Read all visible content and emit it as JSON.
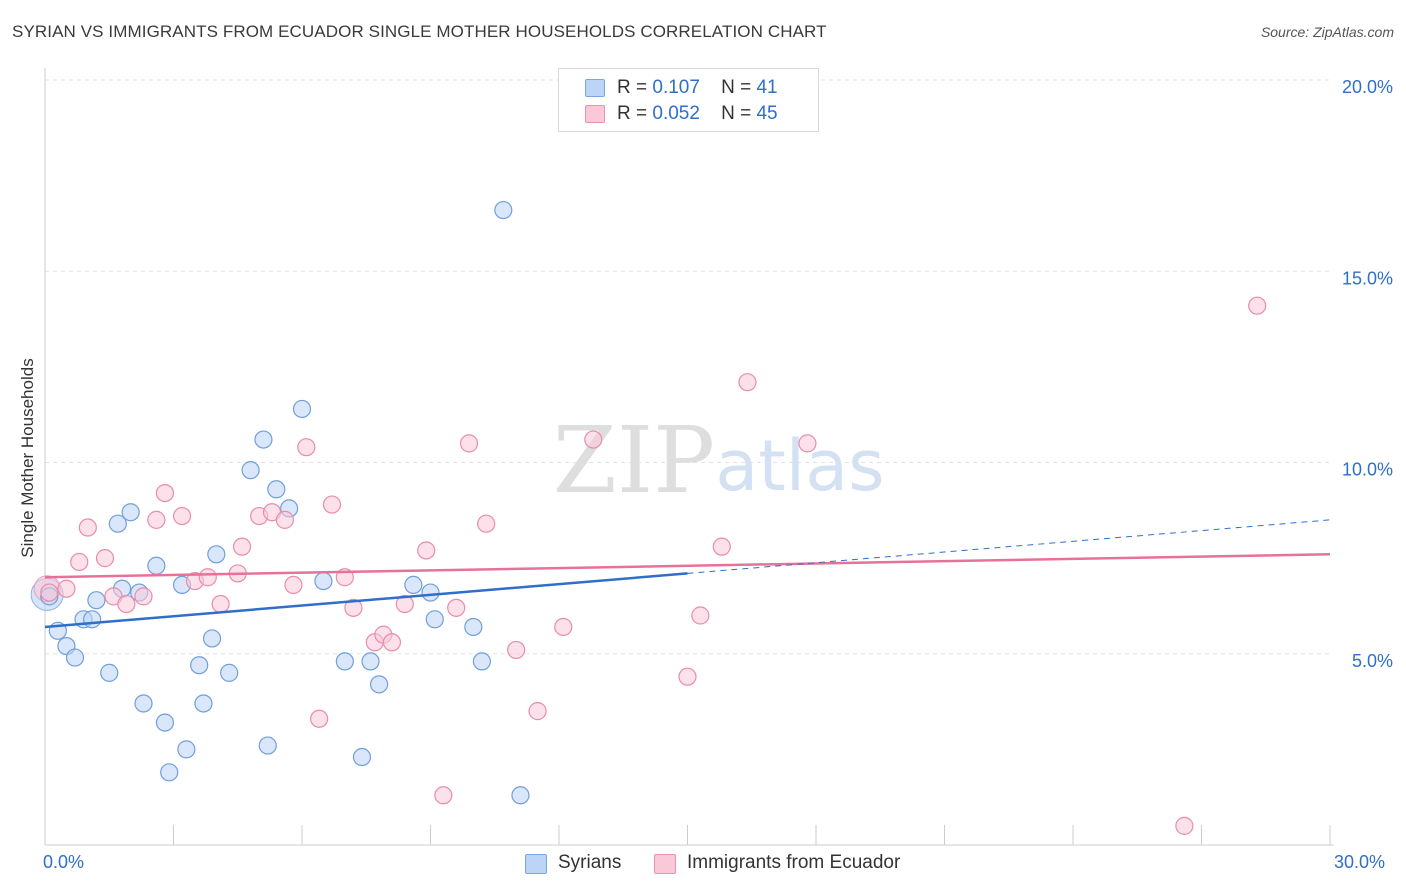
{
  "title": "SYRIAN VS IMMIGRANTS FROM ECUADOR SINGLE MOTHER HOUSEHOLDS CORRELATION CHART",
  "source": "Source: ZipAtlas.com",
  "watermark": {
    "zip": "ZIP",
    "atlas": "atlas"
  },
  "legend": {
    "rows": [
      {
        "r_label": "R =",
        "r_value": "0.107",
        "n_label": "N =",
        "n_value": "41"
      },
      {
        "r_label": "R =",
        "r_value": "0.052",
        "n_label": "N =",
        "n_value": "45"
      }
    ]
  },
  "chart_data": {
    "type": "scatter",
    "title": "SYRIAN VS IMMIGRANTS FROM ECUADOR SINGLE MOTHER HOUSEHOLDS CORRELATION CHART",
    "xlabel": "",
    "ylabel": "Single Mother Households",
    "xlim": [
      0,
      30
    ],
    "ylim": [
      0,
      20
    ],
    "x_tick_labels": [
      "0.0%",
      "30.0%"
    ],
    "y_ticks": [
      5,
      10,
      15,
      20
    ],
    "y_tick_labels": [
      "5.0%",
      "10.0%",
      "15.0%",
      "20.0%"
    ],
    "grid": true,
    "colors": {
      "Syrians": "#2f6fca",
      "Immigrants from Ecuador": "#e8719a",
      "axis_text": "#2f6fca"
    },
    "series": [
      {
        "name": "Syrians",
        "r": 0.107,
        "n": 41,
        "trend": {
          "x": [
            0,
            15
          ],
          "y": [
            5.7,
            7.1
          ]
        },
        "trend_extension": {
          "x": [
            15,
            30
          ],
          "y": [
            7.1,
            8.5
          ]
        },
        "points": [
          [
            0.1,
            6.5
          ],
          [
            0.3,
            5.6
          ],
          [
            0.5,
            5.2
          ],
          [
            0.7,
            4.9
          ],
          [
            0.9,
            5.9
          ],
          [
            1.1,
            5.9
          ],
          [
            1.2,
            6.4
          ],
          [
            1.5,
            4.5
          ],
          [
            1.7,
            8.4
          ],
          [
            1.8,
            6.7
          ],
          [
            2.0,
            8.7
          ],
          [
            2.2,
            6.6
          ],
          [
            2.3,
            3.7
          ],
          [
            2.6,
            7.3
          ],
          [
            2.8,
            3.2
          ],
          [
            2.9,
            1.9
          ],
          [
            3.2,
            6.8
          ],
          [
            3.3,
            2.5
          ],
          [
            3.6,
            4.7
          ],
          [
            3.7,
            3.7
          ],
          [
            3.9,
            5.4
          ],
          [
            4.0,
            7.6
          ],
          [
            4.3,
            4.5
          ],
          [
            4.8,
            9.8
          ],
          [
            5.1,
            10.6
          ],
          [
            5.2,
            2.6
          ],
          [
            5.4,
            9.3
          ],
          [
            5.7,
            8.8
          ],
          [
            6.0,
            11.4
          ],
          [
            6.5,
            6.9
          ],
          [
            7.0,
            4.8
          ],
          [
            7.4,
            2.3
          ],
          [
            7.6,
            4.8
          ],
          [
            7.8,
            4.2
          ],
          [
            8.6,
            6.8
          ],
          [
            9.0,
            6.6
          ],
          [
            9.1,
            5.9
          ],
          [
            10.0,
            5.7
          ],
          [
            10.2,
            4.8
          ],
          [
            10.7,
            16.6
          ],
          [
            11.1,
            1.3
          ]
        ]
      },
      {
        "name": "Immigrants from Ecuador",
        "r": 0.052,
        "n": 45,
        "trend": {
          "x": [
            0,
            30
          ],
          "y": [
            7.0,
            7.6
          ]
        },
        "points": [
          [
            0.1,
            6.6
          ],
          [
            0.5,
            6.7
          ],
          [
            0.8,
            7.4
          ],
          [
            1.0,
            8.3
          ],
          [
            1.4,
            7.5
          ],
          [
            1.6,
            6.5
          ],
          [
            1.9,
            6.3
          ],
          [
            2.3,
            6.5
          ],
          [
            2.6,
            8.5
          ],
          [
            2.8,
            9.2
          ],
          [
            3.2,
            8.6
          ],
          [
            3.5,
            6.9
          ],
          [
            3.8,
            7.0
          ],
          [
            4.1,
            6.3
          ],
          [
            4.5,
            7.1
          ],
          [
            4.6,
            7.8
          ],
          [
            5.0,
            8.6
          ],
          [
            5.3,
            8.7
          ],
          [
            5.6,
            8.5
          ],
          [
            5.8,
            6.8
          ],
          [
            6.1,
            10.4
          ],
          [
            6.4,
            3.3
          ],
          [
            6.7,
            8.9
          ],
          [
            7.0,
            7.0
          ],
          [
            7.2,
            6.2
          ],
          [
            7.7,
            5.3
          ],
          [
            7.9,
            5.5
          ],
          [
            8.1,
            5.3
          ],
          [
            8.4,
            6.3
          ],
          [
            8.9,
            7.7
          ],
          [
            9.3,
            1.3
          ],
          [
            9.6,
            6.2
          ],
          [
            9.9,
            10.5
          ],
          [
            10.3,
            8.4
          ],
          [
            11.0,
            5.1
          ],
          [
            11.5,
            3.5
          ],
          [
            12.1,
            5.7
          ],
          [
            12.8,
            10.6
          ],
          [
            15.0,
            4.4
          ],
          [
            15.3,
            6.0
          ],
          [
            15.8,
            7.8
          ],
          [
            16.4,
            12.1
          ],
          [
            17.8,
            10.5
          ],
          [
            26.6,
            0.5
          ],
          [
            28.3,
            14.1
          ]
        ]
      }
    ]
  },
  "bottom_legend": [
    {
      "label": "Syrians"
    },
    {
      "label": "Immigrants from Ecuador"
    }
  ]
}
